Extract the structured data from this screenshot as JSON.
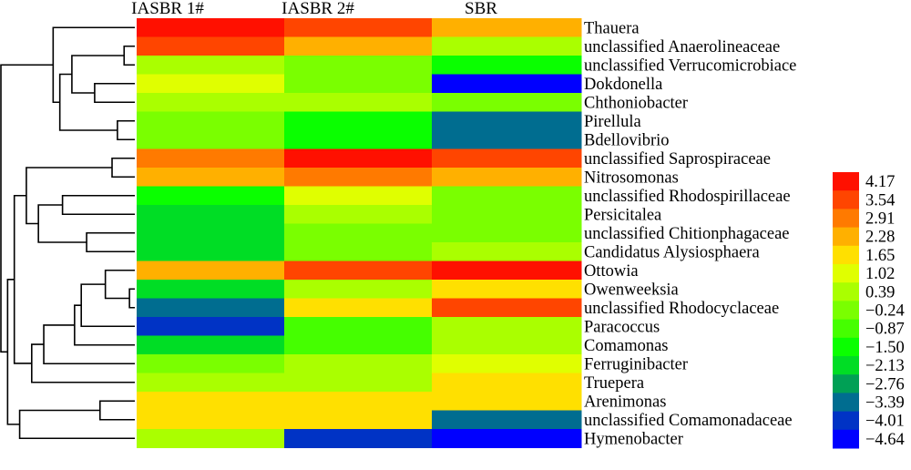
{
  "chart_data": {
    "type": "heatmap",
    "title": "",
    "columns": [
      "IASBR 1#",
      "IASBR 2#",
      "SBR"
    ],
    "rows": [
      "Thauera",
      "unclassified Anaerolineaceae",
      "unclassified Verrucomicrobiace",
      "Dokdonella",
      "Chthoniobacter",
      "Pirellula",
      "Bdellovibrio",
      "unclassified Saprospiraceae",
      "Nitrosomonas",
      "unclassified Rhodospirillaceae",
      "Persicitalea",
      "unclassified Chitionphagaceae",
      "Candidatus Alysiosphaera",
      "Ottowia",
      "Owenweeksia",
      "unclassified Rhodocyclaceae",
      "Paracoccus",
      "Comamonas",
      "Ferruginibacter",
      "Truepera",
      "Arenimonas",
      "unclassified Comamonadaceae",
      "Hymenobacter"
    ],
    "values": [
      [
        4.17,
        3.54,
        2.28
      ],
      [
        3.54,
        2.28,
        0.39
      ],
      [
        0.39,
        -0.24,
        -1.5
      ],
      [
        1.02,
        -0.24,
        -4.64
      ],
      [
        0.39,
        0.39,
        -0.24
      ],
      [
        -0.24,
        -1.5,
        -3.39
      ],
      [
        -0.24,
        -1.5,
        -3.39
      ],
      [
        2.91,
        4.17,
        3.54
      ],
      [
        2.28,
        2.91,
        2.28
      ],
      [
        -1.5,
        1.02,
        -0.24
      ],
      [
        -2.13,
        0.39,
        -0.24
      ],
      [
        -2.13,
        -0.24,
        -0.24
      ],
      [
        -2.13,
        -0.24,
        0.39
      ],
      [
        2.28,
        3.54,
        4.17
      ],
      [
        -2.13,
        0.39,
        1.65
      ],
      [
        -3.39,
        1.65,
        3.54
      ],
      [
        -4.01,
        -0.87,
        0.39
      ],
      [
        -2.13,
        -0.87,
        0.39
      ],
      [
        -0.24,
        0.39,
        1.02
      ],
      [
        0.39,
        0.39,
        1.65
      ],
      [
        1.65,
        1.65,
        1.65
      ],
      [
        1.65,
        1.65,
        -3.39
      ],
      [
        0.39,
        -4.01,
        -4.64
      ]
    ],
    "color_scale": {
      "labels": [
        "4.17",
        "3.54",
        "2.91",
        "2.28",
        "1.65",
        "1.02",
        "0.39",
        "−0.24",
        "−0.87",
        "−1.50",
        "−2.13",
        "−2.76",
        "−3.39",
        "−4.01",
        "−4.64"
      ],
      "levels": [
        4.17,
        3.54,
        2.91,
        2.28,
        1.65,
        1.02,
        0.39,
        -0.24,
        -0.87,
        -1.5,
        -2.13,
        -2.76,
        -3.39,
        -4.01,
        -4.64
      ],
      "colors": [
        "#FF1000",
        "#FF4500",
        "#FF7A00",
        "#FFB000",
        "#FFE000",
        "#E0FF00",
        "#AAFF00",
        "#7AFF00",
        "#45FF00",
        "#0AFF00",
        "#00DD25",
        "#00A055",
        "#006D90",
        "#0033C5",
        "#0000FF"
      ],
      "placement": "right"
    },
    "row_dendrogram": {
      "merges": [
        [
          1,
          2
        ],
        [
          3,
          4
        ],
        [
          "m0",
          "m1"
        ],
        [
          5,
          6
        ],
        [
          "m2",
          "m3"
        ],
        [
          0,
          "m4"
        ],
        [
          7,
          8
        ],
        [
          9,
          10
        ],
        [
          11,
          12
        ],
        [
          "m7",
          "m8"
        ],
        [
          "m6",
          "m9"
        ],
        [
          14,
          15
        ],
        [
          13,
          "m11"
        ],
        [
          "m12",
          16
        ],
        [
          "m13",
          17
        ],
        [
          "m14",
          18
        ],
        [
          "m15",
          19
        ],
        [
          "m10",
          "m16"
        ],
        [
          20,
          21
        ],
        [
          "m18",
          22
        ],
        [
          "m17",
          "m19"
        ],
        [
          "m5",
          "m20"
        ]
      ],
      "heights": [
        0.08,
        0.3,
        0.47,
        0.13,
        0.56,
        0.61,
        0.17,
        0.54,
        0.36,
        0.72,
        0.81,
        0.04,
        0.22,
        0.4,
        0.45,
        0.68,
        0.77,
        0.9,
        0.26,
        0.86,
        0.95,
        1.0
      ]
    }
  }
}
